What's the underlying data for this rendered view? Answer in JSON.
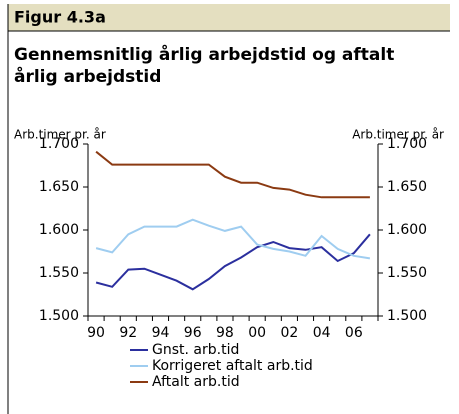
{
  "chart_data": {
    "type": "line",
    "figure_label": "Figur 4.3a",
    "title": "Gennemsnitlig årlig arbejdstid og aftalt årlig arbejdstid",
    "ylabel": "Arb.timer pr. år",
    "y2label": "Arb.timer pr. år",
    "categories": [
      "90",
      null,
      "92",
      null,
      "94",
      null,
      "96",
      null,
      "98",
      null,
      "00",
      null,
      "02",
      null,
      "04",
      null,
      "06",
      null
    ],
    "ylim": [
      1500,
      1700
    ],
    "yticks": [
      {
        "value": 1500,
        "label": "1.500"
      },
      {
        "value": 1550,
        "label": "1.550"
      },
      {
        "value": 1600,
        "label": "1.600"
      },
      {
        "value": 1650,
        "label": "1.650"
      },
      {
        "value": 1700,
        "label": "1.700"
      }
    ],
    "y2lim": [
      1500,
      1700
    ],
    "y2ticks": [
      {
        "value": 1500,
        "label": "1.500"
      },
      {
        "value": 1550,
        "label": "1.550"
      },
      {
        "value": 1600,
        "label": "1.600"
      },
      {
        "value": 1650,
        "label": "1.650"
      },
      {
        "value": 1700,
        "label": "1.700"
      }
    ],
    "series": [
      {
        "name": "Gnst. arb.tid",
        "color": "#2b2f9e",
        "values": [
          1539,
          1534,
          1554,
          1555,
          1548,
          1541,
          1531,
          1543,
          1558,
          1568,
          1580,
          1586,
          1579,
          1577,
          1580,
          1564,
          1573,
          1595
        ]
      },
      {
        "name": "Korrigeret aftalt arb.tid",
        "color": "#9fcdf0",
        "values": [
          1579,
          1574,
          1595,
          1604,
          1604,
          1604,
          1612,
          1605,
          1599,
          1604,
          1583,
          1578,
          1575,
          1570,
          1593,
          1578,
          1570,
          1567
        ]
      },
      {
        "name": "Aftalt arb.tid",
        "color": "#8b3a12",
        "values": [
          1691,
          1676,
          1676,
          1676,
          1676,
          1676,
          1676,
          1676,
          1662,
          1655,
          1655,
          1649,
          1647,
          1641,
          1638,
          1638,
          1638,
          1638
        ]
      }
    ]
  }
}
